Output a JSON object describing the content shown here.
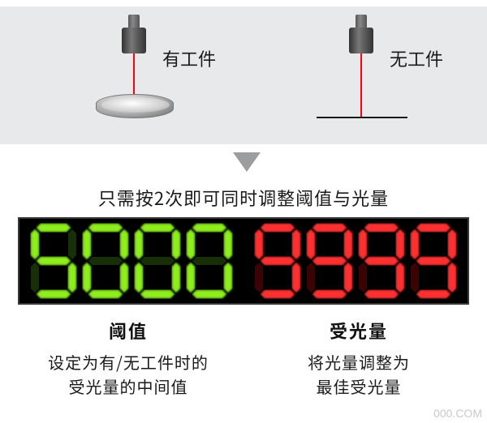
{
  "panel": {
    "background_color": "#e8e9ea",
    "left_label": "有工件",
    "right_label": "无工件",
    "laser_color": "#ff0010"
  },
  "arrow": {
    "color": "#9c9d9e"
  },
  "subtitle": "只需按2次即可同时调整阈值与光量",
  "display": {
    "background": "#000000",
    "border_color": "#3a3a3a",
    "left": {
      "digits": "5000",
      "segment_on": "#7fe80a",
      "segment_off": "#173008",
      "glow": "#b7ff4a"
    },
    "right": {
      "digits": "9999",
      "segment_on": "#ff1a1a",
      "segment_off": "#3a0404",
      "glow": "#ff6a6a"
    },
    "digit_width": 56,
    "digit_height": 92,
    "segment_thickness": 10
  },
  "columns": {
    "left_title": "阈值",
    "left_desc_line1": "设定为有/无工件时的",
    "left_desc_line2": "受光量的中间值",
    "right_title": "受光量",
    "right_desc_line1": "将光量调整为",
    "right_desc_line2": "最佳受光量"
  },
  "watermark": "000.COM",
  "text_color": "#1a1a1a",
  "title_font_size": 22,
  "desc_font_size": 20
}
